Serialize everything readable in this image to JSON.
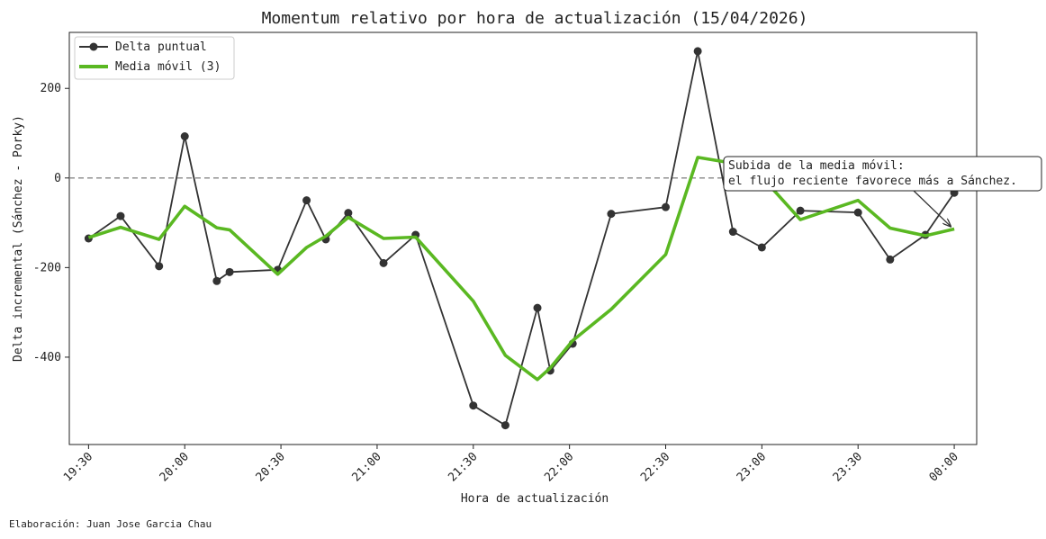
{
  "chart_data": {
    "type": "line",
    "title": "Momentum relativo por hora de actualización (15/04/2026)",
    "xlabel": "Hora de actualización",
    "ylabel": "Delta incremental (Sánchez - Porky)",
    "x_ticks": [
      "19:30",
      "20:00",
      "20:30",
      "21:00",
      "21:30",
      "22:00",
      "22:30",
      "23:00",
      "23:30",
      "00:00"
    ],
    "y_ticks": [
      -400,
      -200,
      0,
      200
    ],
    "xlim": [
      "19:24",
      "00:07"
    ],
    "ylim": [
      -595,
      325
    ],
    "reference_line": {
      "y": 0,
      "style": "dashed",
      "color": "#888888"
    },
    "legend_position": "upper-left",
    "series": [
      {
        "name": "Delta puntual",
        "color": "#333333",
        "marker": "circle",
        "x": [
          "19:30",
          "19:40",
          "19:52",
          "20:00",
          "20:10",
          "20:14",
          "20:29",
          "20:38",
          "20:44",
          "20:51",
          "21:02",
          "21:12",
          "21:30",
          "21:40",
          "21:50",
          "21:54",
          "22:01",
          "22:13",
          "22:30",
          "22:40",
          "22:51",
          "23:00",
          "23:12",
          "23:30",
          "23:40",
          "23:51",
          "00:00"
        ],
        "values": [
          -135,
          -85,
          -197,
          93,
          -230,
          -210,
          -205,
          -50,
          -137,
          -78,
          -190,
          -127,
          -508,
          -552,
          -290,
          -430,
          -370,
          -80,
          -65,
          283,
          -120,
          -155,
          -73,
          -77,
          -182,
          -127,
          -33
        ]
      },
      {
        "name": "Media móvil (3)",
        "color": "#5ab822",
        "x": [
          "19:30",
          "19:40",
          "19:52",
          "20:00",
          "20:10",
          "20:14",
          "20:29",
          "20:38",
          "20:44",
          "20:51",
          "21:02",
          "21:12",
          "21:30",
          "21:40",
          "21:50",
          "21:54",
          "22:01",
          "22:13",
          "22:30",
          "22:40",
          "22:51",
          "23:00",
          "23:12",
          "23:30",
          "23:40",
          "23:51",
          "00:00"
        ],
        "values": [
          -133,
          -110,
          -137,
          -63,
          -111,
          -116,
          -215,
          -155,
          -130,
          -88,
          -135,
          -132,
          -275,
          -396,
          -450,
          -424,
          -363,
          -293,
          -171,
          46,
          33,
          2,
          -93,
          -50,
          -112,
          -129,
          -114
        ]
      }
    ],
    "annotation": {
      "lines": [
        "Subida de la media móvil:",
        "el flujo reciente favorece más a Sánchez."
      ],
      "arrow_to": {
        "x": "00:00",
        "y": -114
      }
    }
  },
  "footer": {
    "credit": "Elaboración: Juan Jose Garcia Chau"
  }
}
